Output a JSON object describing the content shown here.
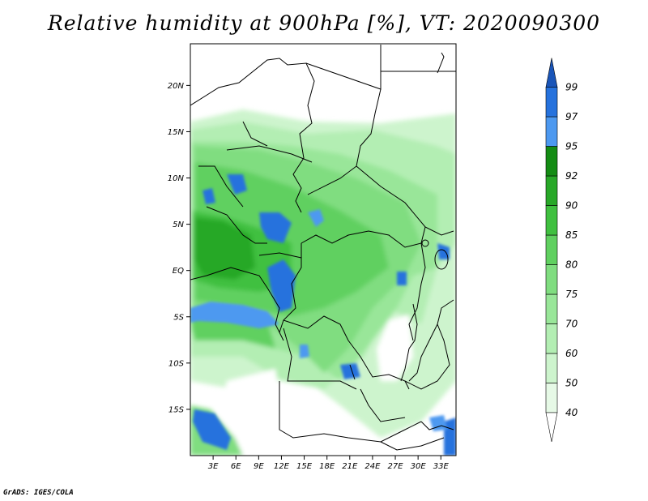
{
  "title": "Relative humidity at 900hPa [%], VT: 2020090300",
  "footer": "GrADS: IGES/COLA",
  "map": {
    "lon_range": [
      0,
      35
    ],
    "lat_range": [
      -20,
      24.5
    ],
    "lat_ticks": [
      {
        "value": 20,
        "label": "20N"
      },
      {
        "value": 15,
        "label": "15N"
      },
      {
        "value": 10,
        "label": "10N"
      },
      {
        "value": 5,
        "label": "5N"
      },
      {
        "value": 0,
        "label": "EQ"
      },
      {
        "value": -5,
        "label": "5S"
      },
      {
        "value": -10,
        "label": "10S"
      },
      {
        "value": -15,
        "label": "15S"
      }
    ],
    "lon_ticks": [
      {
        "value": 3,
        "label": "3E"
      },
      {
        "value": 6,
        "label": "6E"
      },
      {
        "value": 9,
        "label": "9E"
      },
      {
        "value": 12,
        "label": "12E"
      },
      {
        "value": 15,
        "label": "15E"
      },
      {
        "value": 18,
        "label": "18E"
      },
      {
        "value": 21,
        "label": "21E"
      },
      {
        "value": 24,
        "label": "24E"
      },
      {
        "value": 27,
        "label": "27E"
      },
      {
        "value": 30,
        "label": "30E"
      },
      {
        "value": 33,
        "label": "33E"
      }
    ]
  },
  "colorbar": {
    "labels": [
      "40",
      "50",
      "60",
      "70",
      "75",
      "80",
      "85",
      "90",
      "92",
      "95",
      "97",
      "99"
    ],
    "colors": {
      "below_40": "#ffffff",
      "c40": "#e6f9e6",
      "c50": "#cdf4cd",
      "c60": "#b3eeb3",
      "c70": "#99e699",
      "c75": "#80dd80",
      "c80": "#60d060",
      "c85": "#40c040",
      "c90": "#28a828",
      "c92": "#148c14",
      "c95": "#4d99f0",
      "c97": "#2672dd",
      "c99": "#1e5fc0",
      "above_99": "#1a55b8"
    }
  }
}
